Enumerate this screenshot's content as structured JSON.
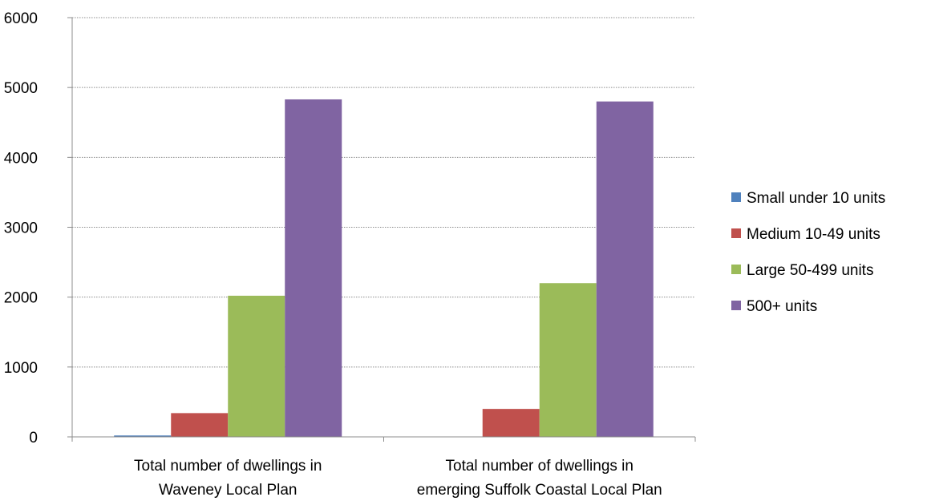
{
  "chart_data": {
    "type": "bar",
    "title": "",
    "xlabel": "",
    "ylabel": "",
    "ylim": [
      0,
      6000
    ],
    "yticks": [
      0,
      1000,
      2000,
      3000,
      4000,
      5000,
      6000
    ],
    "grid": true,
    "legend_position": "right",
    "categories": [
      [
        "Total number of dwellings in",
        "Waveney Local Plan"
      ],
      [
        "Total number of dwellings in",
        "emerging Suffolk Coastal Local Plan"
      ]
    ],
    "series": [
      {
        "name": "Small under 10 units",
        "color": "#4f81bd",
        "values": [
          20,
          0
        ]
      },
      {
        "name": "Medium 10-49 units",
        "color": "#c0504d",
        "values": [
          340,
          400
        ]
      },
      {
        "name": "Large 50-499 units",
        "color": "#9bbb59",
        "values": [
          2020,
          2200
        ]
      },
      {
        "name": "500+ units",
        "color": "#8064a2",
        "values": [
          4830,
          4800
        ]
      }
    ]
  }
}
